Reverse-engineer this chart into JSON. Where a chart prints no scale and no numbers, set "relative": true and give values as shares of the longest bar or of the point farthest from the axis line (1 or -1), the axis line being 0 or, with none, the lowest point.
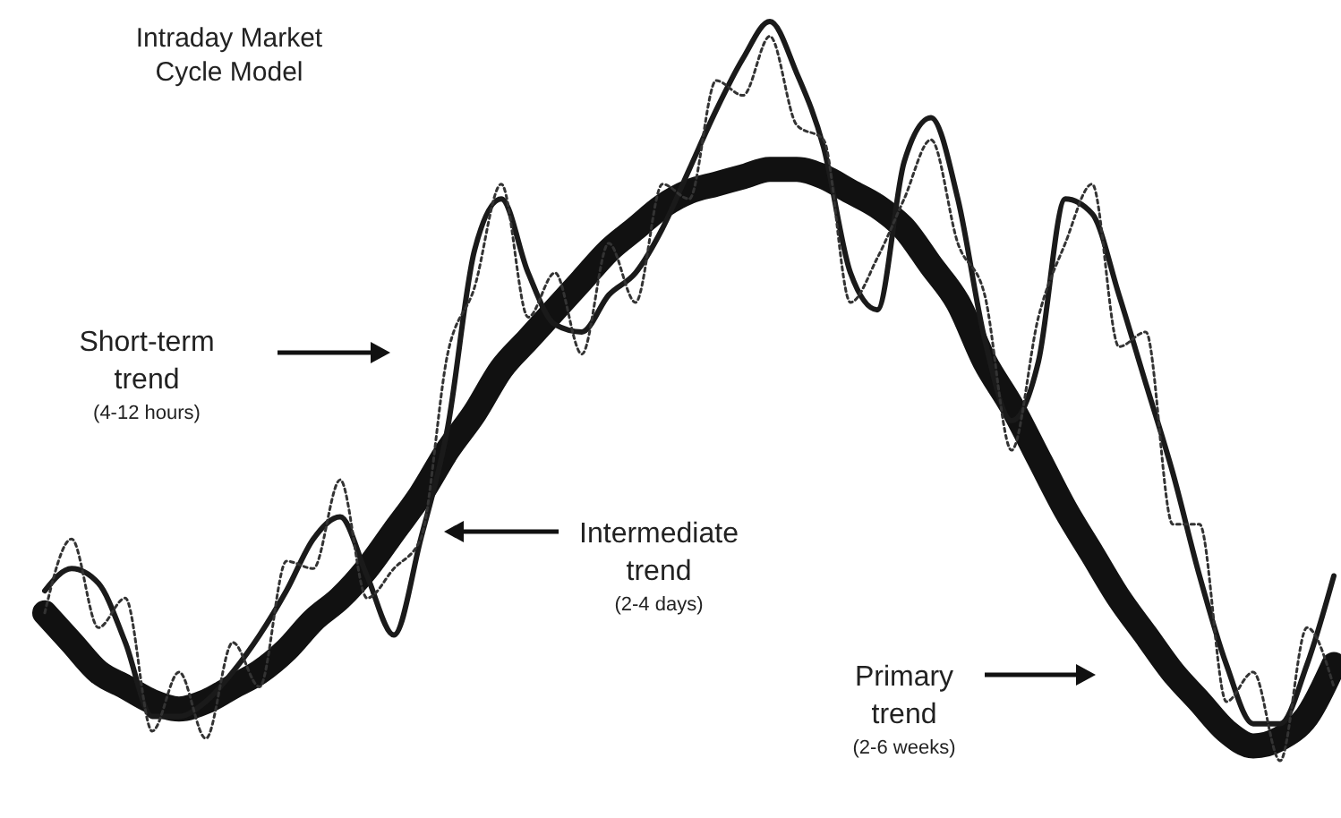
{
  "chart_data": {
    "type": "line",
    "relative": true,
    "title": "Intraday Market Cycle Model",
    "categories": [
      null,
      null,
      null,
      null,
      null,
      null,
      null,
      null,
      null,
      null,
      null,
      null,
      null,
      null,
      null,
      null,
      null,
      null,
      null,
      null,
      null,
      null,
      null,
      null,
      null,
      null,
      null,
      null,
      null,
      null,
      null,
      null,
      null,
      null,
      null,
      null,
      null,
      null,
      null,
      null,
      null,
      null,
      null,
      null,
      null,
      null,
      null,
      null,
      null
    ],
    "series": [
      {
        "color": "#111111",
        "line_style": "solid",
        "values": [
          0.2,
          0.16,
          0.12,
          0.1,
          0.08,
          0.07,
          0.08,
          0.1,
          0.12,
          0.15,
          0.19,
          0.22,
          0.26,
          0.31,
          0.36,
          0.42,
          0.47,
          0.53,
          0.57,
          0.61,
          0.65,
          0.69,
          0.72,
          0.75,
          0.77,
          0.78,
          0.79,
          0.8,
          0.8,
          0.79,
          0.77,
          0.75,
          0.72,
          0.67,
          0.62,
          0.54,
          0.48,
          0.41,
          0.34,
          0.28,
          0.22,
          0.17,
          0.12,
          0.08,
          0.04,
          0.02,
          0.03,
          0.06,
          0.13
        ]
      },
      {
        "color": "#1a1a1a",
        "line_style": "solid",
        "values": [
          0.23,
          0.26,
          0.24,
          0.16,
          0.06,
          0.06,
          0.08,
          0.12,
          0.17,
          0.23,
          0.3,
          0.33,
          0.25,
          0.17,
          0.3,
          0.45,
          0.69,
          0.76,
          0.66,
          0.59,
          0.58,
          0.63,
          0.66,
          0.72,
          0.8,
          0.88,
          0.95,
          1.0,
          0.93,
          0.83,
          0.66,
          0.61,
          0.81,
          0.87,
          0.76,
          0.57,
          0.46,
          0.54,
          0.76,
          0.74,
          0.63,
          0.51,
          0.39,
          0.25,
          0.13,
          0.05,
          0.05,
          0.13,
          0.25
        ]
      },
      {
        "color": "#333333",
        "line_style": "dotted",
        "values": [
          0.2,
          0.3,
          0.18,
          0.22,
          0.04,
          0.12,
          0.03,
          0.16,
          0.1,
          0.27,
          0.26,
          0.38,
          0.22,
          0.26,
          0.3,
          0.55,
          0.64,
          0.78,
          0.6,
          0.66,
          0.55,
          0.7,
          0.62,
          0.78,
          0.76,
          0.92,
          0.9,
          0.98,
          0.86,
          0.84,
          0.62,
          0.68,
          0.76,
          0.84,
          0.7,
          0.63,
          0.42,
          0.6,
          0.7,
          0.78,
          0.56,
          0.58,
          0.32,
          0.32,
          0.08,
          0.12,
          0.0,
          0.18,
          0.1
        ]
      }
    ],
    "annotations": [
      "Short-term\ntrend\n(4-12 hours)",
      "Intermediate\ntrend\n(2-4 days)",
      "Primary\ntrend\n(2-6 weeks)"
    ]
  }
}
